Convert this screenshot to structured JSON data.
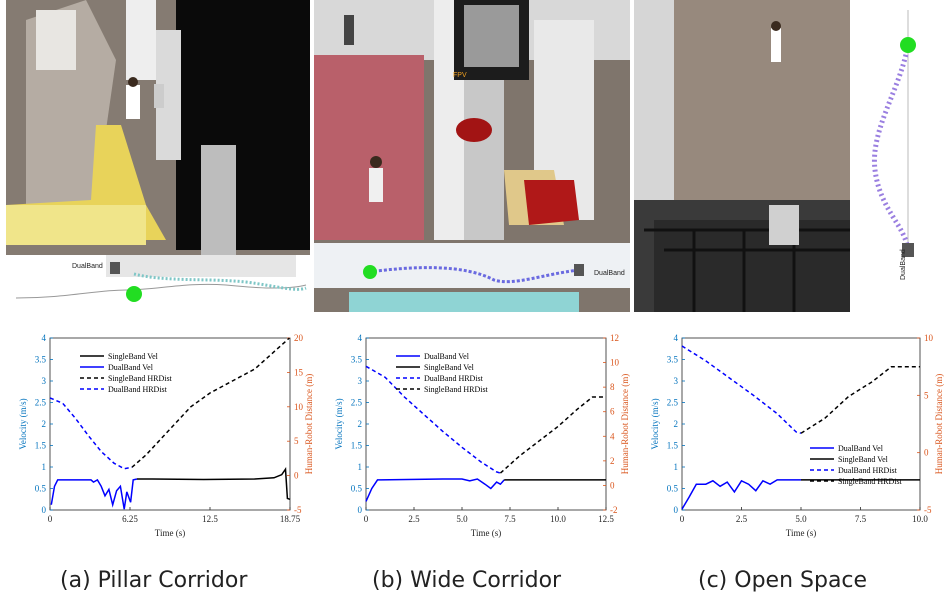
{
  "figure": {
    "captions": [
      "(a) Pillar Corridor",
      "(b) Wide Corridor",
      "(c) Open Space"
    ],
    "photo_labels": {
      "a_robot": "DualBand",
      "b_inset": "FPV",
      "b_robot": "DualBand",
      "d_robot": "DualBand"
    }
  },
  "colors": {
    "dualband": "#0000ff",
    "singleband": "#000000",
    "right_axis": "#d95319",
    "left_axis": "#0072bd"
  },
  "chart_data": [
    {
      "type": "line",
      "panel": "a",
      "xlabel": "Time (s)",
      "ylabel_left": "Velocity (m/s)",
      "ylabel_right": "Human-Robot Distance (m)",
      "xlim": [
        0,
        18.75
      ],
      "ylim_left": [
        0,
        4
      ],
      "ylim_right": [
        -5,
        20
      ],
      "x_ticks": [
        "0",
        "6.25",
        "12.5",
        "18.75"
      ],
      "x_tick_values": [
        0,
        6.25,
        12.5,
        18.75
      ],
      "y_ticks_left": [
        "0",
        "0.5",
        "1",
        "1.5",
        "2",
        "2.5",
        "3",
        "3.5",
        "4"
      ],
      "y_ticks_right": [
        "-5",
        "0",
        "5",
        "10",
        "15",
        "20"
      ],
      "legend": [
        {
          "label": "SingleBand Vel",
          "color": "#000000",
          "dash": "solid"
        },
        {
          "label": "DualBand Vel",
          "color": "#0000ff",
          "dash": "solid"
        },
        {
          "label": "SingleBand HRDist",
          "color": "#000000",
          "dash": "dashed"
        },
        {
          "label": "DualBand HRDist",
          "color": "#0000ff",
          "dash": "dashed"
        }
      ],
      "series": [
        {
          "name": "SingleBand Vel",
          "axis": "left",
          "color": "#000000",
          "dash": "solid",
          "points": [
            [
              6.8,
              0.72
            ],
            [
              8,
              0.72
            ],
            [
              12,
              0.71
            ],
            [
              16,
              0.72
            ],
            [
              17.5,
              0.75
            ],
            [
              18.1,
              0.82
            ],
            [
              18.4,
              0.95
            ],
            [
              18.55,
              0.27
            ],
            [
              18.75,
              0.25
            ]
          ]
        },
        {
          "name": "DualBand Vel",
          "axis": "left",
          "color": "#0000ff",
          "dash": "solid",
          "points": [
            [
              0.1,
              0.12
            ],
            [
              0.35,
              0.55
            ],
            [
              0.6,
              0.7
            ],
            [
              3.2,
              0.7
            ],
            [
              3.4,
              0.65
            ],
            [
              3.7,
              0.7
            ],
            [
              4,
              0.55
            ],
            [
              4.3,
              0.33
            ],
            [
              4.6,
              0.48
            ],
            [
              4.9,
              0.12
            ],
            [
              5.2,
              0.45
            ],
            [
              5.5,
              0.55
            ],
            [
              5.8,
              0.02
            ],
            [
              6,
              0.42
            ],
            [
              6.3,
              0.18
            ],
            [
              6.5,
              0.7
            ],
            [
              6.8,
              0.72
            ]
          ]
        },
        {
          "name": "SingleBand HRDist",
          "axis": "right",
          "color": "#000000",
          "dash": "dashed",
          "points": [
            [
              6.4,
              1.2
            ],
            [
              7.5,
              3
            ],
            [
              9,
              6
            ],
            [
              11,
              10
            ],
            [
              12.5,
              12
            ],
            [
              14,
              13.5
            ],
            [
              16,
              15.5
            ],
            [
              18.7,
              20
            ]
          ]
        },
        {
          "name": "DualBand HRDist",
          "axis": "right",
          "color": "#0000ff",
          "dash": "dashed",
          "points": [
            [
              0,
              11.3
            ],
            [
              1,
              10.5
            ],
            [
              2,
              8.3
            ],
            [
              3,
              5.8
            ],
            [
              4,
              3.5
            ],
            [
              5,
              1.8
            ],
            [
              5.8,
              1.0
            ],
            [
              6.4,
              1.2
            ]
          ]
        }
      ]
    },
    {
      "type": "line",
      "panel": "b",
      "xlabel": "Time (s)",
      "ylabel_left": "Velocity (m/s)",
      "ylabel_right": "Human-Robot Distance (m)",
      "xlim": [
        0,
        12.5
      ],
      "ylim_left": [
        0,
        4
      ],
      "ylim_right": [
        -2,
        12
      ],
      "x_ticks": [
        "0",
        "2.5",
        "5.0",
        "7.5",
        "10.0",
        "12.5"
      ],
      "x_tick_values": [
        0,
        2.5,
        5,
        7.5,
        10,
        12.5
      ],
      "y_ticks_left": [
        "0",
        "0.5",
        "1",
        "1.5",
        "2",
        "2.5",
        "3",
        "3.5",
        "4"
      ],
      "y_ticks_right": [
        "-2",
        "0",
        "2",
        "4",
        "6",
        "8",
        "10",
        "12"
      ],
      "legend": [
        {
          "label": "DualBand Vel",
          "color": "#0000ff",
          "dash": "solid"
        },
        {
          "label": "SingleBand Vel",
          "color": "#000000",
          "dash": "solid"
        },
        {
          "label": "DualBand HRDist",
          "color": "#0000ff",
          "dash": "dashed"
        },
        {
          "label": "SingleBand HRDist",
          "color": "#000000",
          "dash": "dashed"
        }
      ],
      "series": [
        {
          "name": "DualBand Vel",
          "axis": "left",
          "color": "#0000ff",
          "dash": "solid",
          "points": [
            [
              0,
              0.2
            ],
            [
              0.3,
              0.5
            ],
            [
              0.6,
              0.7
            ],
            [
              4,
              0.72
            ],
            [
              5,
              0.72
            ],
            [
              5.4,
              0.68
            ],
            [
              5.8,
              0.72
            ],
            [
              6.2,
              0.6
            ],
            [
              6.5,
              0.5
            ],
            [
              6.8,
              0.65
            ],
            [
              7,
              0.6
            ],
            [
              7.2,
              0.7
            ]
          ]
        },
        {
          "name": "SingleBand Vel",
          "axis": "left",
          "color": "#000000",
          "dash": "solid",
          "points": [
            [
              7.2,
              0.7
            ],
            [
              8,
              0.7
            ],
            [
              10,
              0.7
            ],
            [
              12.5,
              0.7
            ]
          ]
        },
        {
          "name": "DualBand HRDist",
          "axis": "right",
          "color": "#0000ff",
          "dash": "dashed",
          "points": [
            [
              0,
              9.7
            ],
            [
              1,
              8.8
            ],
            [
              2,
              7.2
            ],
            [
              3,
              5.8
            ],
            [
              4,
              4.4
            ],
            [
              5,
              3.1
            ],
            [
              6,
              1.9
            ],
            [
              6.8,
              1.1
            ],
            [
              7,
              1.0
            ]
          ]
        },
        {
          "name": "SingleBand HRDist",
          "axis": "right",
          "color": "#000000",
          "dash": "dashed",
          "points": [
            [
              7,
              1.0
            ],
            [
              8,
              2.4
            ],
            [
              9,
              3.6
            ],
            [
              10,
              4.8
            ],
            [
              11,
              6.2
            ],
            [
              11.8,
              7.2
            ],
            [
              12.5,
              7.2
            ]
          ]
        }
      ]
    },
    {
      "type": "line",
      "panel": "c",
      "xlabel": "Time (s)",
      "ylabel_left": "Velocity (m/s)",
      "ylabel_right": "Human-Robot Distance (m)",
      "xlim": [
        0,
        10
      ],
      "ylim_left": [
        0,
        4
      ],
      "ylim_right": [
        -5,
        10
      ],
      "x_ticks": [
        "0",
        "2.5",
        "5.0",
        "7.5",
        "10.0"
      ],
      "x_tick_values": [
        0,
        2.5,
        5,
        7.5,
        10
      ],
      "y_ticks_left": [
        "0",
        "0.5",
        "1",
        "1.5",
        "2",
        "2.5",
        "3",
        "3.5",
        "4"
      ],
      "y_ticks_right": [
        "-5",
        "0",
        "5",
        "10"
      ],
      "legend": [
        {
          "label": "DualBand Vel",
          "color": "#0000ff",
          "dash": "solid"
        },
        {
          "label": "SingleBand Vel",
          "color": "#000000",
          "dash": "solid"
        },
        {
          "label": "DualBand HRDist",
          "color": "#0000ff",
          "dash": "dashed"
        },
        {
          "label": "SingleBand HRDist",
          "color": "#000000",
          "dash": "dashed"
        }
      ],
      "series": [
        {
          "name": "DualBand Vel",
          "axis": "left",
          "color": "#0000ff",
          "dash": "solid",
          "points": [
            [
              0,
              0.02
            ],
            [
              0.3,
              0.3
            ],
            [
              0.6,
              0.6
            ],
            [
              1,
              0.6
            ],
            [
              1.3,
              0.68
            ],
            [
              1.6,
              0.55
            ],
            [
              1.9,
              0.65
            ],
            [
              2.2,
              0.42
            ],
            [
              2.5,
              0.68
            ],
            [
              2.8,
              0.6
            ],
            [
              3.1,
              0.45
            ],
            [
              3.4,
              0.68
            ],
            [
              3.7,
              0.6
            ],
            [
              4,
              0.7
            ],
            [
              5,
              0.7
            ]
          ]
        },
        {
          "name": "SingleBand Vel",
          "axis": "left",
          "color": "#000000",
          "dash": "solid",
          "points": [
            [
              5,
              0.7
            ],
            [
              7,
              0.7
            ],
            [
              10,
              0.7
            ]
          ]
        },
        {
          "name": "DualBand HRDist",
          "axis": "right",
          "color": "#0000ff",
          "dash": "dashed",
          "points": [
            [
              0,
              9.3
            ],
            [
              1,
              8
            ],
            [
              2,
              6.5
            ],
            [
              3,
              5
            ],
            [
              4,
              3.4
            ],
            [
              4.8,
              1.8
            ],
            [
              5,
              1.7
            ]
          ]
        },
        {
          "name": "SingleBand HRDist",
          "axis": "right",
          "color": "#000000",
          "dash": "dashed",
          "points": [
            [
              5,
              1.7
            ],
            [
              6,
              3
            ],
            [
              7,
              4.9
            ],
            [
              8,
              6.2
            ],
            [
              8.8,
              7.5
            ],
            [
              10,
              7.5
            ]
          ]
        }
      ]
    }
  ]
}
